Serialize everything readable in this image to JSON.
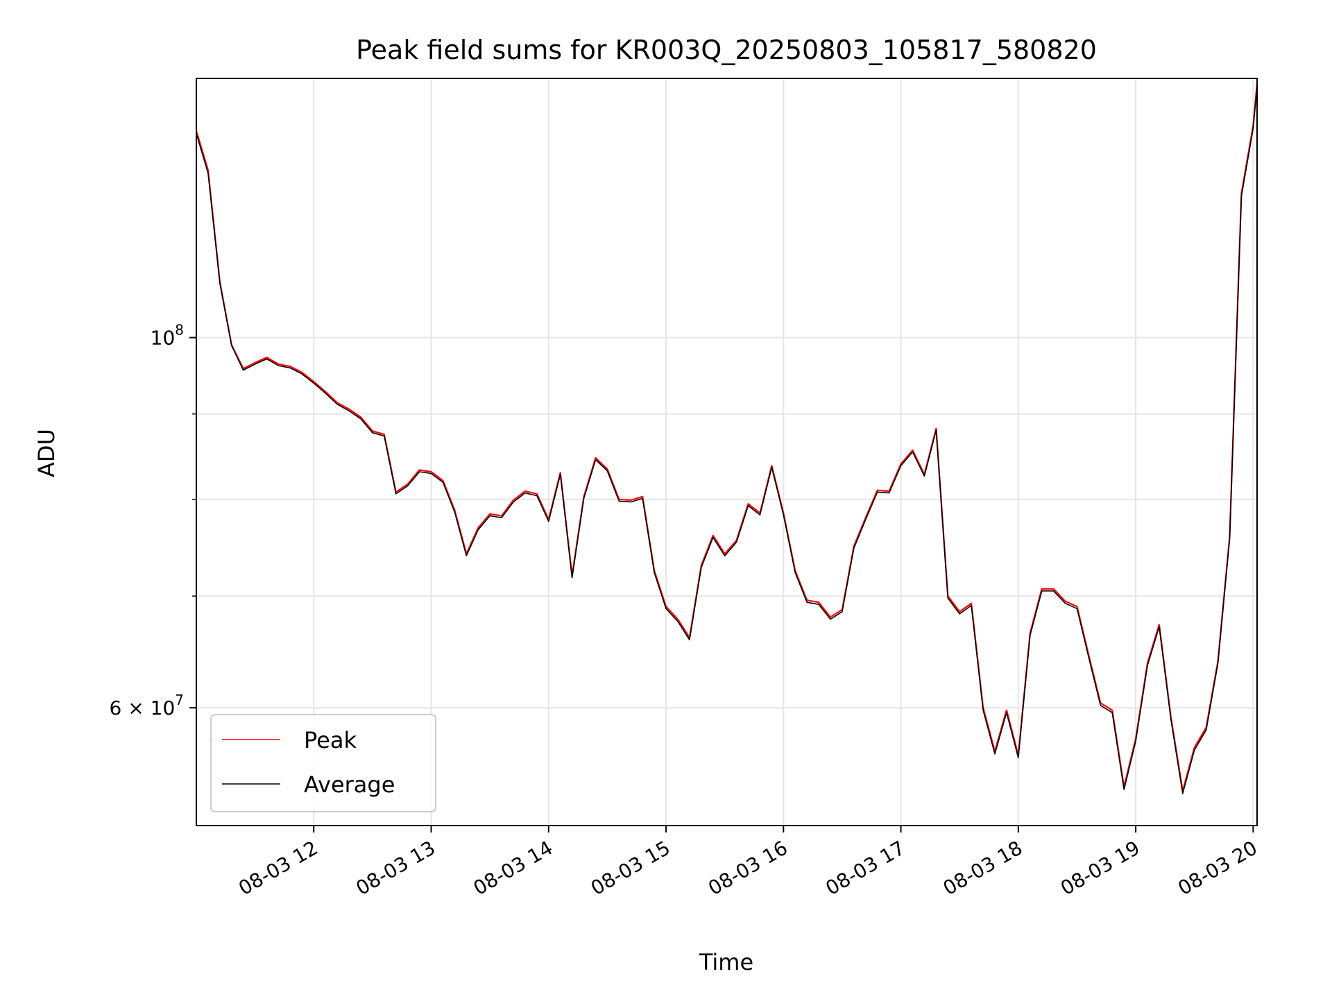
{
  "chart_data": {
    "type": "line",
    "title": "Peak field sums for KR003Q_20250803_105817_580820",
    "xlabel": "Time",
    "ylabel": "ADU",
    "yscale": "log",
    "xlim": [
      "08-03 11:00",
      "08-03 20:02"
    ],
    "ylim": [
      51000000,
      143000000
    ],
    "grid": true,
    "legend_placement": "lower-left",
    "x_ticks": [
      "08-03 12",
      "08-03 13",
      "08-03 14",
      "08-03 15",
      "08-03 16",
      "08-03 17",
      "08-03 18",
      "08-03 19",
      "08-03 20"
    ],
    "y_ticks": [
      {
        "value": 100000000,
        "label": "10",
        "exp": "8"
      },
      {
        "value": 60000000,
        "label": "6 × 10",
        "exp": "7"
      }
    ],
    "x": [
      "08-03 11:00",
      "08-03 11:06",
      "08-03 11:12",
      "08-03 11:18",
      "08-03 11:24",
      "08-03 11:30",
      "08-03 11:36",
      "08-03 11:42",
      "08-03 11:48",
      "08-03 11:54",
      "08-03 12:00",
      "08-03 12:06",
      "08-03 12:12",
      "08-03 12:18",
      "08-03 12:24",
      "08-03 12:30",
      "08-03 12:36",
      "08-03 12:42",
      "08-03 12:48",
      "08-03 12:54",
      "08-03 13:00",
      "08-03 13:06",
      "08-03 13:12",
      "08-03 13:18",
      "08-03 13:24",
      "08-03 13:30",
      "08-03 13:36",
      "08-03 13:42",
      "08-03 13:48",
      "08-03 13:54",
      "08-03 14:00",
      "08-03 14:06",
      "08-03 14:12",
      "08-03 14:18",
      "08-03 14:24",
      "08-03 14:30",
      "08-03 14:36",
      "08-03 14:42",
      "08-03 14:48",
      "08-03 14:54",
      "08-03 15:00",
      "08-03 15:06",
      "08-03 15:12",
      "08-03 15:18",
      "08-03 15:24",
      "08-03 15:30",
      "08-03 15:36",
      "08-03 15:42",
      "08-03 15:48",
      "08-03 15:54",
      "08-03 16:00",
      "08-03 16:06",
      "08-03 16:12",
      "08-03 16:18",
      "08-03 16:24",
      "08-03 16:30",
      "08-03 16:36",
      "08-03 16:42",
      "08-03 16:48",
      "08-03 16:54",
      "08-03 17:00",
      "08-03 17:06",
      "08-03 17:12",
      "08-03 17:18",
      "08-03 17:24",
      "08-03 17:30",
      "08-03 17:36",
      "08-03 17:42",
      "08-03 17:48",
      "08-03 17:54",
      "08-03 18:00",
      "08-03 18:06",
      "08-03 18:12",
      "08-03 18:18",
      "08-03 18:24",
      "08-03 18:30",
      "08-03 18:36",
      "08-03 18:42",
      "08-03 18:48",
      "08-03 18:54",
      "08-03 19:00",
      "08-03 19:06",
      "08-03 19:12",
      "08-03 19:18",
      "08-03 19:24",
      "08-03 19:30",
      "08-03 19:36",
      "08-03 19:42",
      "08-03 19:48",
      "08-03 19:54",
      "08-03 20:00",
      "08-03 20:02"
    ],
    "series": [
      {
        "name": "Peak",
        "color": "#ff0000",
        "values": [
          133000000,
          126000000,
          108000000,
          99000000,
          95800000,
          96600000,
          97300000,
          96400000,
          96100000,
          95300000,
          94100000,
          92800000,
          91400000,
          90600000,
          89600000,
          87900000,
          87500000,
          80800000,
          81700000,
          83300000,
          83100000,
          82100000,
          78800000,
          74200000,
          76900000,
          78400000,
          78200000,
          79900000,
          80900000,
          80600000,
          77800000,
          83000000,
          72000000,
          80300000,
          84700000,
          83400000,
          80000000,
          79900000,
          80300000,
          72500000,
          69000000,
          67800000,
          66100000,
          73000000,
          76100000,
          74200000,
          75600000,
          79500000,
          78500000,
          83800000,
          78500000,
          72500000,
          69600000,
          69400000,
          68000000,
          68700000,
          75000000,
          78000000,
          81000000,
          80900000,
          84000000,
          85600000,
          82800000,
          88200000,
          70000000,
          68500000,
          69300000,
          60000000,
          56500000,
          59800000,
          56200000,
          66500000,
          70700000,
          70700000,
          69500000,
          69000000,
          64500000,
          60400000,
          59800000,
          53800000,
          57500000,
          63800000,
          67300000,
          59200000,
          53500000,
          56800000,
          58400000,
          64000000,
          76000000,
          122000000,
          134000000,
          142000000
        ]
      },
      {
        "name": "Average",
        "color": "#000000",
        "values": [
          132500000,
          125500000,
          107800000,
          98900000,
          95600000,
          96400000,
          97100000,
          96200000,
          95900000,
          95100000,
          93900000,
          92600000,
          91200000,
          90400000,
          89400000,
          87700000,
          87300000,
          80600000,
          81500000,
          83100000,
          82900000,
          81900000,
          78600000,
          74000000,
          76700000,
          78200000,
          78000000,
          79700000,
          80700000,
          80400000,
          77600000,
          82800000,
          71800000,
          80100000,
          84500000,
          83200000,
          79800000,
          79700000,
          80100000,
          72300000,
          68800000,
          67600000,
          65900000,
          72800000,
          75900000,
          74000000,
          75400000,
          79300000,
          78300000,
          83600000,
          78300000,
          72300000,
          69400000,
          69200000,
          67800000,
          68500000,
          74800000,
          77800000,
          80800000,
          80700000,
          83800000,
          85400000,
          82600000,
          88000000,
          69800000,
          68300000,
          69100000,
          59800000,
          56300000,
          59600000,
          56000000,
          66300000,
          70500000,
          70500000,
          69300000,
          68800000,
          64300000,
          60200000,
          59600000,
          53600000,
          57300000,
          63600000,
          67100000,
          59000000,
          53300000,
          56600000,
          58200000,
          63800000,
          75800000,
          121500000,
          133500000,
          141500000
        ]
      }
    ]
  }
}
